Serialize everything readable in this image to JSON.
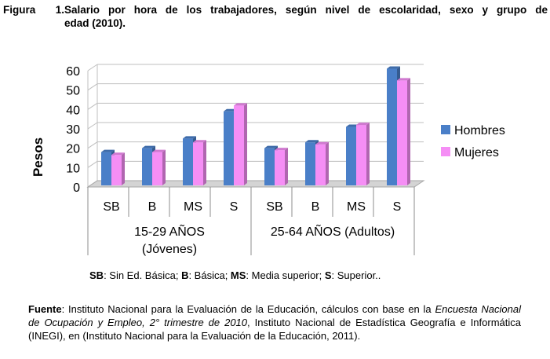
{
  "figure": {
    "number": "Figura 1.",
    "title_line1": "Salario por hora de los trabajadores, según nivel de escolaridad, sexo y grupo de",
    "title_line2": "edad (2010)."
  },
  "chart_data": {
    "type": "bar",
    "ylabel": "Pesos",
    "ylim": [
      0,
      60
    ],
    "yticks": [
      "0",
      "10",
      "20",
      "30",
      "40",
      "50",
      "60"
    ],
    "categories": [
      "SB",
      "B",
      "MS",
      "S",
      "SB",
      "B",
      "MS",
      "S"
    ],
    "groups": [
      {
        "label_line1": "15-29 AÑOS",
        "label_line2": "(Jóvenes)"
      },
      {
        "label_line1": "25-64 AÑOS (Adultos)",
        "label_line2": ""
      }
    ],
    "series": [
      {
        "name": "Hombres",
        "color": "#4a7fc8",
        "values": [
          18,
          20,
          25,
          39,
          20,
          23,
          31,
          61
        ]
      },
      {
        "name": "Mujeres",
        "color": "#f58ef5",
        "values": [
          16.5,
          18,
          23,
          42,
          19,
          22,
          32,
          55
        ]
      }
    ],
    "legend_position": "right",
    "grid": true
  },
  "abbreviations": [
    {
      "abbr": "SB",
      "text": ": Sin Ed. Básica; "
    },
    {
      "abbr": "B",
      "text": ": Básica; "
    },
    {
      "abbr": "MS",
      "text": ": Media superior; "
    },
    {
      "abbr": "S",
      "text": ": Superior.."
    }
  ],
  "source": {
    "label": "Fuente",
    "text_part1": ": Instituto Nacional para la Evaluación de la Educación, cálculos con base en la ",
    "italic": "Encuesta Nacional de Ocupación y Empleo, 2° trimestre de 2010",
    "text_part2": ", Instituto Nacional de Estadística Geografía e Informática (INEGI), en (Instituto Nacional para la Evaluación de la Educación, 2011)."
  }
}
